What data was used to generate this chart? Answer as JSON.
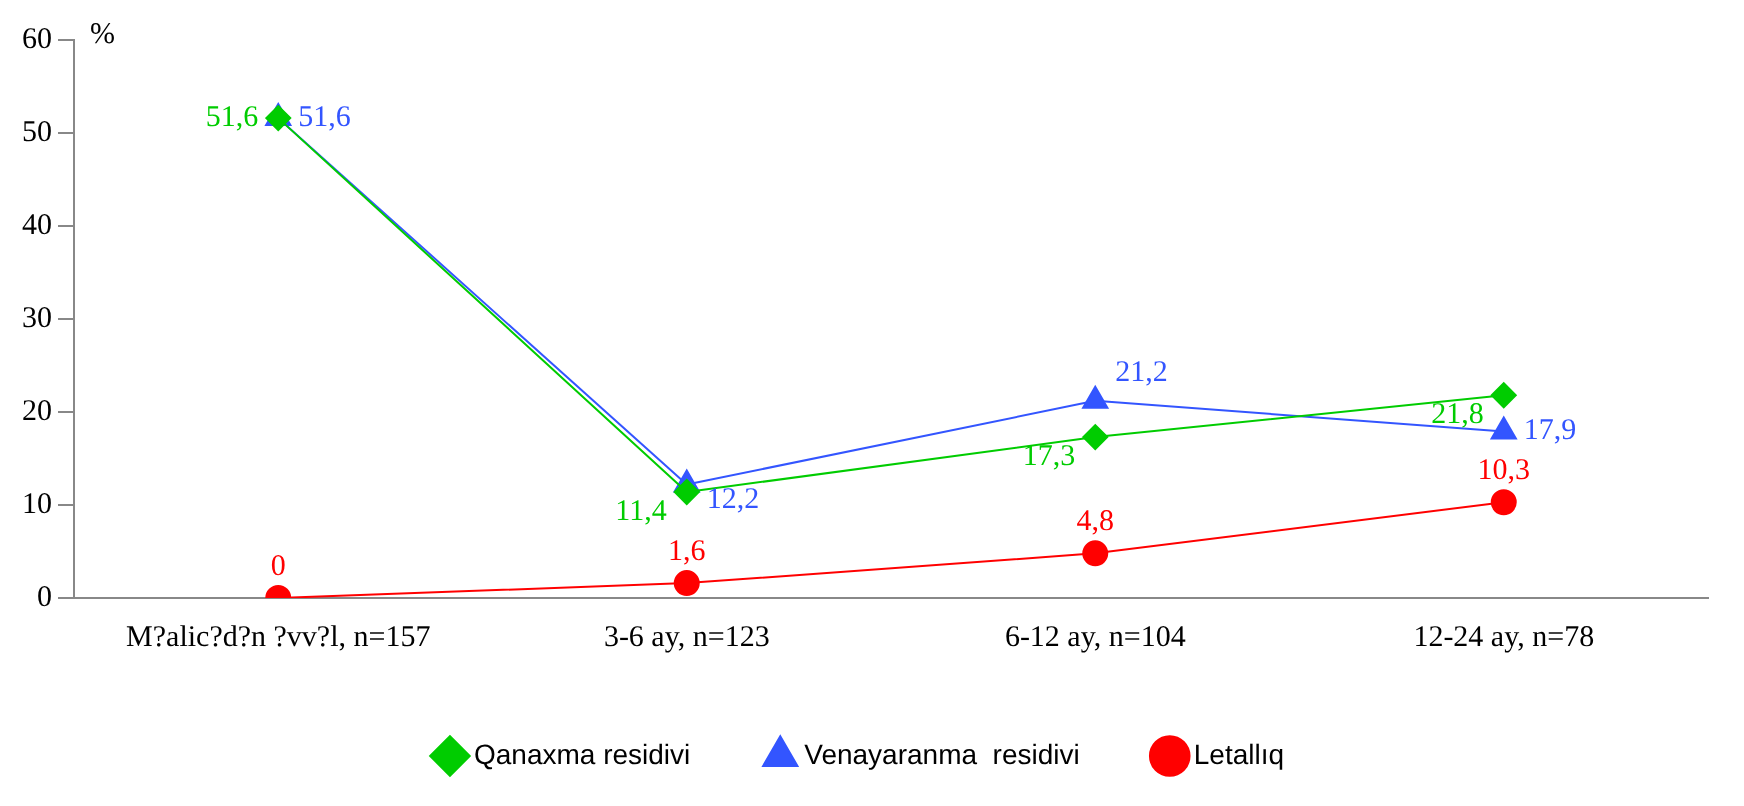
{
  "chart_data": {
    "type": "line",
    "ylabel": "%",
    "categories": [
      "M?alic?d?n ?vv?l, n=157",
      "3-6 ay, n=123",
      "6-12 ay, n=104",
      "12-24 ay, n=78"
    ],
    "series": [
      {
        "name": "Qanaxma residivi",
        "color": "#00cc00",
        "marker": "diamond",
        "values": [
          51.6,
          11.4,
          17.3,
          21.8
        ],
        "value_labels": [
          "51,6",
          "11,4",
          "17,3",
          "21,8"
        ]
      },
      {
        "name": "Venayaranma  residivi",
        "color": "#3355ff",
        "marker": "triangle",
        "values": [
          51.6,
          12.2,
          21.2,
          17.9
        ],
        "value_labels": [
          "51,6",
          "12,2",
          "21,2",
          "17,9"
        ]
      },
      {
        "name": "Letallıq",
        "color": "#ff0000",
        "marker": "circle",
        "values": [
          0,
          1.6,
          4.8,
          10.3
        ],
        "value_labels": [
          "0",
          "1,6",
          "4,8",
          "10,3"
        ]
      }
    ],
    "ylim": [
      0,
      60
    ],
    "yticks": [
      0,
      10,
      20,
      30,
      40,
      50,
      60
    ],
    "grid": false,
    "legend": "bottom",
    "line_style": "solid"
  }
}
